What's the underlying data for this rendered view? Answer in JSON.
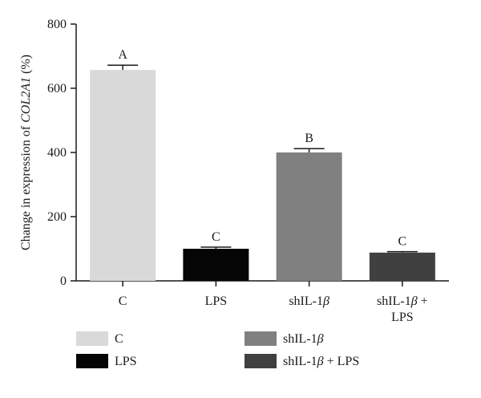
{
  "chart_data": {
    "type": "bar",
    "categories": [
      "C",
      "LPS",
      "shIL-1β",
      "shIL-1β + LPS"
    ],
    "category_lines": [
      [
        "C"
      ],
      [
        "LPS"
      ],
      [
        "shIL-1",
        "β"
      ],
      [
        "shIL-1",
        "β",
        " +",
        "LPS"
      ]
    ],
    "values": [
      657,
      100,
      400,
      88
    ],
    "errors": [
      15,
      5,
      12,
      3
    ],
    "significance": [
      "A",
      "C",
      "B",
      "C"
    ],
    "colors": [
      "#d9d9d9",
      "#050505",
      "#808080",
      "#404040"
    ],
    "ylabel_prefix": "Change in expression of ",
    "ylabel_gene": "COL2A1",
    "ylabel_suffix": " (%)",
    "ylim": [
      0,
      800
    ],
    "yticks": [
      0,
      200,
      400,
      600,
      800
    ],
    "grid": false,
    "legend_position": "bottom",
    "legend": [
      {
        "label": "C",
        "color": "#d9d9d9"
      },
      {
        "label": "shIL-1β",
        "color": "#808080"
      },
      {
        "label": "LPS",
        "color": "#050505"
      },
      {
        "label": "shIL-1β + LPS",
        "color": "#404040"
      }
    ]
  }
}
